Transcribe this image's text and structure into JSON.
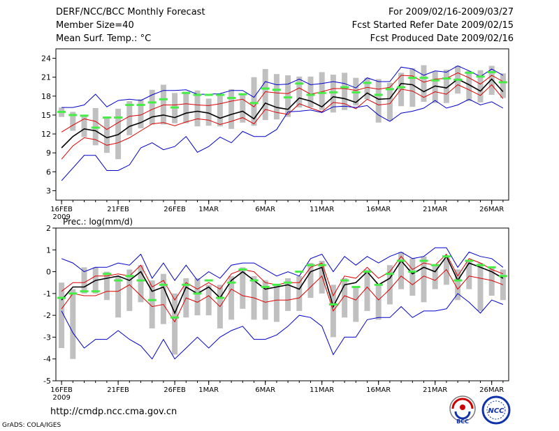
{
  "header": {
    "left": [
      "DERF/NCC/BCC Monthly Forecast",
      "Member Size=40",
      "Mean Surf. Temp.: °C"
    ],
    "right": [
      "For 2009/02/16-2009/03/27",
      "Fcst Started Refer Date 2009/02/15",
      "Fcst Produced Date 2009/02/16"
    ]
  },
  "footer": {
    "url": "http://cmdp.ncc.cma.gov.cn",
    "credit": "GrADS: COLA/IGES",
    "logo1_text": "BCC",
    "logo2_text": "NCC"
  },
  "colors": {
    "mean": "#000000",
    "std": "#dd0000",
    "minmax": "#0000cc",
    "box": "#c0c0c0",
    "ref": "#44ee44"
  },
  "chart_data": [
    {
      "type": "line",
      "title": "Mean Surf. Temp.: °C",
      "xlabel": "",
      "ylabel": "",
      "ylim": [
        1.5,
        25.5
      ],
      "yticks": [
        3,
        6,
        9,
        12,
        15,
        18,
        21,
        24
      ],
      "days": 40,
      "xtick_labels": [
        {
          "day": 1,
          "label": "16FEB"
        },
        {
          "day": 6,
          "label": "21FEB"
        },
        {
          "day": 11,
          "label": "26FEB"
        },
        {
          "day": 14,
          "label": "1MAR"
        },
        {
          "day": 19,
          "label": "6MAR"
        },
        {
          "day": 24,
          "label": "11MAR"
        },
        {
          "day": 29,
          "label": "16MAR"
        },
        {
          "day": 34,
          "label": "21MAR"
        },
        {
          "day": 39,
          "label": "26MAR"
        }
      ],
      "year_label": "2009",
      "series": [
        {
          "name": "max",
          "values": [
            16.2,
            16.2,
            16.6,
            18.3,
            16.3,
            17.3,
            17.5,
            17.3,
            18.2,
            18.9,
            18.9,
            19.0,
            18.3,
            18.3,
            18.4,
            18.9,
            18.9,
            17.8,
            20.3,
            19.8,
            19.9,
            20.7,
            19.8,
            20.0,
            20.3,
            20.0,
            19.3,
            20.9,
            20.3,
            20.3,
            22.6,
            22.3,
            21.3,
            22.0,
            21.8,
            22.8,
            22.0,
            21.1,
            22.3,
            21.3
          ]
        },
        {
          "name": "std_upper",
          "values": [
            12.3,
            13.4,
            14.4,
            14.0,
            12.7,
            13.8,
            14.8,
            15.0,
            15.9,
            16.6,
            16.6,
            16.8,
            16.6,
            16.5,
            16.8,
            17.2,
            17.5,
            16.3,
            18.7,
            18.5,
            18.4,
            19.3,
            18.3,
            18.7,
            19.2,
            19.2,
            18.9,
            19.4,
            19.1,
            19.4,
            21.3,
            21.2,
            20.2,
            20.7,
            20.8,
            21.7,
            20.9,
            19.9,
            21.3,
            20.3
          ]
        },
        {
          "name": "mean",
          "values": [
            9.8,
            11.6,
            12.8,
            12.5,
            11.4,
            11.9,
            13.2,
            13.8,
            14.7,
            15.0,
            14.6,
            15.3,
            15.6,
            15.3,
            14.5,
            15.1,
            15.6,
            14.4,
            16.9,
            16.2,
            15.9,
            17.7,
            17.2,
            16.3,
            17.9,
            17.6,
            17.0,
            18.5,
            17.5,
            17.6,
            20.0,
            19.8,
            18.7,
            19.6,
            19.3,
            20.7,
            19.8,
            18.8,
            20.7,
            18.7
          ]
        },
        {
          "name": "std_lower",
          "values": [
            8.0,
            10.1,
            11.4,
            11.1,
            10.2,
            10.6,
            11.4,
            12.5,
            13.6,
            13.8,
            13.3,
            13.9,
            14.4,
            14.2,
            13.5,
            14.0,
            14.6,
            13.6,
            15.9,
            15.4,
            15.1,
            16.8,
            16.1,
            15.5,
            17.0,
            16.8,
            16.0,
            17.5,
            16.6,
            16.8,
            19.1,
            18.8,
            17.8,
            18.7,
            18.3,
            19.8,
            19.0,
            18.1,
            19.8,
            17.6
          ]
        },
        {
          "name": "min",
          "values": [
            4.6,
            6.6,
            8.6,
            8.6,
            6.2,
            6.2,
            7.1,
            9.8,
            10.6,
            9.5,
            10.0,
            11.6,
            9.1,
            10.0,
            11.5,
            10.6,
            12.4,
            11.6,
            11.6,
            12.7,
            15.5,
            15.6,
            15.8,
            15.4,
            16.3,
            16.4,
            16.2,
            16.5,
            15.0,
            14.0,
            15.3,
            15.6,
            16.1,
            17.3,
            16.1,
            16.6,
            17.5,
            16.6,
            17.1,
            16.1
          ]
        }
      ],
      "boxes": [
        [
          14.7,
          16.2
        ],
        [
          12.5,
          15.5
        ],
        [
          11.5,
          15.0
        ],
        [
          10.2,
          16.1
        ],
        [
          9.0,
          14.5
        ],
        [
          8.0,
          16.0
        ],
        [
          11.8,
          17.2
        ],
        [
          12.9,
          17.5
        ],
        [
          13.5,
          19.0
        ],
        [
          13.5,
          19.8
        ],
        [
          13.7,
          18.5
        ],
        [
          13.7,
          18.7
        ],
        [
          13.2,
          18.9
        ],
        [
          13.3,
          17.6
        ],
        [
          13.2,
          18.3
        ],
        [
          12.8,
          19.1
        ],
        [
          13.8,
          18.2
        ],
        [
          13.3,
          21.0
        ],
        [
          14.2,
          22.3
        ],
        [
          14.3,
          21.5
        ],
        [
          14.7,
          21.3
        ],
        [
          16.2,
          21.1
        ],
        [
          16.2,
          21.1
        ],
        [
          15.8,
          21.8
        ],
        [
          15.4,
          21.4
        ],
        [
          15.8,
          21.7
        ],
        [
          16.5,
          20.9
        ],
        [
          17.5,
          20.9
        ],
        [
          13.8,
          20.7
        ],
        [
          14.1,
          20.1
        ],
        [
          16.4,
          21.7
        ],
        [
          16.3,
          22.4
        ],
        [
          17.1,
          22.9
        ],
        [
          16.9,
          21.9
        ],
        [
          16.9,
          22.2
        ],
        [
          18.4,
          22.8
        ],
        [
          17.2,
          22.0
        ],
        [
          17.0,
          22.1
        ],
        [
          18.2,
          22.8
        ],
        [
          17.7,
          21.6
        ]
      ],
      "ref": [
        15.5,
        15.0,
        14.9,
        13.0,
        14.6,
        14.6,
        16.6,
        16.6,
        17.0,
        17.5,
        16.2,
        18.5,
        18.2,
        18.2,
        18.2,
        17.7,
        18.3,
        16.9,
        19.2,
        19.0,
        17.8,
        20.0,
        18.2,
        18.5,
        18.6,
        19.4,
        18.6,
        20.1,
        18.2,
        19.1,
        19.4,
        20.9,
        20.9,
        20.5,
        20.8,
        20.6,
        21.7,
        21.1,
        21.8,
        20.2
      ]
    },
    {
      "type": "line",
      "title": "Prec.: log(mm/d)",
      "xlabel": "",
      "ylabel": "",
      "ylim": [
        -5,
        2
      ],
      "yticks": [
        -5,
        -4,
        -3,
        -2,
        -1,
        0,
        1,
        2
      ],
      "days": 40,
      "xtick_labels": [
        {
          "day": 1,
          "label": "16FEB"
        },
        {
          "day": 6,
          "label": "21FEB"
        },
        {
          "day": 11,
          "label": "26FEB"
        },
        {
          "day": 14,
          "label": "1MAR"
        },
        {
          "day": 19,
          "label": "6MAR"
        },
        {
          "day": 24,
          "label": "11MAR"
        },
        {
          "day": 29,
          "label": "16MAR"
        },
        {
          "day": 34,
          "label": "21MAR"
        },
        {
          "day": 39,
          "label": "26MAR"
        }
      ],
      "year_label": "2009",
      "series": [
        {
          "name": "max",
          "values": [
            0.6,
            0.4,
            0.0,
            0.2,
            0.2,
            0.4,
            0.3,
            0.8,
            -0.3,
            0.4,
            -0.4,
            0.3,
            -0.4,
            0.0,
            -0.3,
            0.3,
            0.4,
            0.4,
            0.1,
            -0.2,
            0.0,
            -0.2,
            0.6,
            0.8,
            0.0,
            0.7,
            0.3,
            0.7,
            0.4,
            0.7,
            0.9,
            0.6,
            0.7,
            1.1,
            1.1,
            0.2,
            0.9,
            0.7,
            0.6,
            0.2
          ]
        },
        {
          "name": "std_upper",
          "values": [
            -0.9,
            -0.5,
            -0.5,
            -0.2,
            -0.2,
            -0.1,
            -0.2,
            0.3,
            -0.7,
            -0.4,
            -1.3,
            -0.5,
            -0.8,
            -0.5,
            -0.8,
            -0.1,
            0.1,
            0.0,
            -0.5,
            -0.6,
            -0.5,
            -0.5,
            0.2,
            0.4,
            -1.1,
            -0.2,
            -0.3,
            0.2,
            -0.3,
            0.0,
            0.7,
            0.1,
            0.4,
            0.3,
            0.8,
            -0.2,
            0.6,
            0.4,
            0.1,
            -0.1
          ]
        },
        {
          "name": "mean",
          "values": [
            -1.3,
            -0.7,
            -0.7,
            -0.4,
            -0.3,
            -0.2,
            -0.4,
            0.0,
            -0.9,
            -0.7,
            -1.9,
            -0.7,
            -1.0,
            -0.7,
            -1.2,
            -0.4,
            0.0,
            -0.4,
            -0.8,
            -0.7,
            -0.6,
            -0.8,
            0.0,
            0.2,
            -1.6,
            -0.6,
            -0.5,
            0.0,
            -0.6,
            -0.3,
            0.5,
            -0.1,
            0.2,
            0.0,
            0.7,
            -0.4,
            0.4,
            0.2,
            0.0,
            -0.3
          ]
        },
        {
          "name": "std_lower",
          "values": [
            -1.7,
            -1.0,
            -1.1,
            -1.1,
            -0.9,
            -0.9,
            -0.6,
            -1.1,
            -1.6,
            -1.5,
            -2.3,
            -1.2,
            -1.4,
            -1.1,
            -1.6,
            -0.8,
            -1.1,
            -1.2,
            -1.4,
            -1.3,
            -1.3,
            -1.2,
            -0.7,
            -0.2,
            -1.8,
            -1.1,
            -1.3,
            -0.7,
            -1.3,
            -0.8,
            -0.2,
            -0.6,
            -0.2,
            -0.4,
            0.1,
            -0.8,
            -0.2,
            -0.3,
            -0.4,
            -0.6
          ]
        },
        {
          "name": "min",
          "values": [
            -1.8,
            -2.8,
            -3.5,
            -3.1,
            -3.1,
            -2.7,
            -3.1,
            -3.4,
            -4.0,
            -3.1,
            -4.0,
            -3.5,
            -3.0,
            -3.5,
            -3.0,
            -2.7,
            -2.5,
            -3.1,
            -3.1,
            -2.9,
            -2.5,
            -2.0,
            -2.1,
            -2.5,
            -3.8,
            -3.0,
            -3.0,
            -2.2,
            -2.1,
            -2.1,
            -1.6,
            -2.1,
            -1.8,
            -1.8,
            -1.7,
            -1.0,
            -1.4,
            -1.9,
            -1.3,
            -1.5
          ]
        }
      ],
      "boxes": [
        [
          -3.5,
          -0.5
        ],
        [
          -4.0,
          -0.8
        ],
        [
          -1.0,
          0.2
        ],
        [
          -1.0,
          0.2
        ],
        [
          -1.3,
          0.0
        ],
        [
          -2.1,
          -0.2
        ],
        [
          -1.8,
          0.1
        ],
        [
          -1.4,
          0.3
        ],
        [
          -2.6,
          -0.4
        ],
        [
          -2.4,
          -0.1
        ],
        [
          -3.8,
          -1.0
        ],
        [
          -2.1,
          -0.3
        ],
        [
          -2.0,
          -0.3
        ],
        [
          -2.0,
          -0.6
        ],
        [
          -2.6,
          -0.6
        ],
        [
          -2.2,
          -0.2
        ],
        [
          -1.7,
          0.2
        ],
        [
          -2.2,
          -0.2
        ],
        [
          -2.2,
          -0.4
        ],
        [
          -2.3,
          -0.6
        ],
        [
          -1.8,
          -0.3
        ],
        [
          -1.8,
          -0.2
        ],
        [
          -1.2,
          0.4
        ],
        [
          -1.0,
          0.5
        ],
        [
          -3.0,
          -0.6
        ],
        [
          -2.1,
          -0.3
        ],
        [
          -2.3,
          -0.7
        ],
        [
          -1.8,
          0.1
        ],
        [
          -2.2,
          -0.6
        ],
        [
          -1.5,
          0.3
        ],
        [
          -0.8,
          0.9
        ],
        [
          -1.1,
          0.6
        ],
        [
          -1.4,
          0.7
        ],
        [
          -0.8,
          0.3
        ],
        [
          -0.6,
          0.6
        ],
        [
          -1.3,
          0.1
        ],
        [
          -0.8,
          0.5
        ],
        [
          -1.8,
          0.4
        ],
        [
          -1.1,
          0.2
        ],
        [
          -1.3,
          0.1
        ]
      ],
      "ref": [
        -1.2,
        -1.0,
        -0.9,
        -0.9,
        -0.1,
        -0.4,
        -0.2,
        -0.4,
        -1.3,
        -0.6,
        -2.1,
        -0.6,
        -1.0,
        -0.4,
        -1.2,
        -0.5,
        0.1,
        -0.4,
        -0.7,
        -0.6,
        -0.5,
        0.0,
        0.3,
        0.3,
        -1.5,
        -0.4,
        -0.7,
        0.0,
        -0.6,
        -0.1,
        0.5,
        0.0,
        0.5,
        0.3,
        0.7,
        -0.4,
        0.5,
        0.3,
        0.2,
        -0.2
      ]
    }
  ]
}
